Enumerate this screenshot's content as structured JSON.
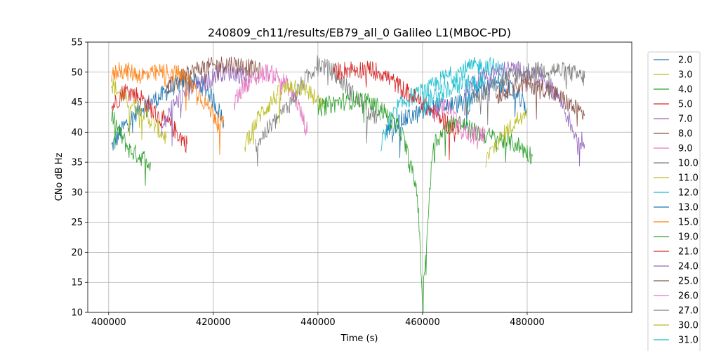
{
  "chart_data": {
    "type": "line",
    "title": "240809_ch11/results/EB79_all_0 Galileo L1(MBOC-PD)",
    "xlabel": "Time (s)",
    "ylabel": "CNo dB Hz",
    "xlim": [
      396000,
      500000
    ],
    "ylim": [
      10,
      55
    ],
    "x_ticks": [
      400000,
      420000,
      440000,
      460000,
      480000
    ],
    "x_tick_labels": [
      "400000",
      "420000",
      "440000",
      "460000",
      "480000"
    ],
    "y_ticks": [
      10,
      15,
      20,
      25,
      30,
      35,
      40,
      45,
      50,
      55
    ],
    "y_tick_labels": [
      "10",
      "15",
      "20",
      "25",
      "30",
      "35",
      "40",
      "45",
      "50",
      "55"
    ],
    "grid": true,
    "legend_position": "outside-right",
    "series": [
      {
        "name": "2.0",
        "color": "#1f77b4",
        "x": [
          400500,
          403000,
          406000,
          410000,
          413000,
          416000,
          419000,
          422000
        ],
        "y": [
          37.5,
          41,
          44,
          46,
          48,
          48.5,
          47,
          42
        ]
      },
      {
        "name": "3.0",
        "color": "#bcbd22",
        "x": [
          400500,
          402000,
          404000,
          406000,
          408000,
          410000,
          411000
        ],
        "y": [
          48,
          46.5,
          45,
          44,
          42,
          40,
          39
        ]
      },
      {
        "name": "4.0",
        "color": "#2ca02c",
        "x": [
          400500,
          402000,
          404000,
          406000,
          408000
        ],
        "y": [
          43,
          40,
          37,
          36,
          35
        ]
      },
      {
        "name": "5.0",
        "color": "#d62728",
        "x": [
          400500,
          403000,
          406000,
          409000,
          412000,
          415000
        ],
        "y": [
          44,
          47,
          46,
          43,
          41,
          38
        ]
      },
      {
        "name": "7.0",
        "color": "#9467bd",
        "x": [
          410000,
          412000,
          415000,
          418000,
          421000,
          424000,
          427000
        ],
        "y": [
          40,
          44,
          47,
          48,
          50,
          50,
          49
        ]
      },
      {
        "name": "8.0",
        "color": "#8c564b",
        "x": [
          411000,
          414000,
          417000,
          420000,
          423000,
          426000,
          429000
        ],
        "y": [
          47,
          49,
          50.5,
          51,
          51.5,
          51,
          50
        ]
      },
      {
        "name": "9.0",
        "color": "#e377c2",
        "x": [
          424000,
          426000,
          428000,
          430000,
          432000,
          434000,
          436000,
          438000
        ],
        "y": [
          45,
          48,
          49,
          50,
          49.5,
          48,
          45,
          40
        ]
      },
      {
        "name": "10.0",
        "color": "#7f7f7f",
        "x": [
          428000,
          431000,
          434000,
          437000,
          440000,
          443000,
          446000,
          449000,
          452000
        ],
        "y": [
          38,
          41,
          44,
          48,
          51.5,
          50,
          47,
          44,
          42
        ]
      },
      {
        "name": "11.0",
        "color": "#bcbd22",
        "x": [
          426000,
          429000,
          432000,
          435000,
          438000,
          441000
        ],
        "y": [
          38,
          43,
          46,
          48,
          47,
          44
        ]
      },
      {
        "name": "12.0",
        "color": "#17becf",
        "x": [
          452000,
          455000,
          458000,
          461000,
          464000,
          467000,
          470000,
          473000,
          476000
        ],
        "y": [
          38,
          44,
          46,
          47,
          49,
          50,
          51,
          51,
          50
        ]
      },
      {
        "name": "13.0",
        "color": "#1f77b4",
        "x": [
          453000,
          456000,
          459000,
          462000,
          465000,
          468000,
          471000,
          474000,
          477000,
          480000
        ],
        "y": [
          40,
          42,
          43,
          44,
          44.5,
          45,
          47,
          48,
          47,
          44
        ]
      },
      {
        "name": "15.0",
        "color": "#ff7f0e",
        "x": [
          400500,
          402000,
          404000,
          406000,
          408000,
          410000,
          412000,
          414000,
          416000,
          418000,
          420000,
          422000
        ],
        "y": [
          49,
          50.5,
          50,
          49.5,
          49.5,
          50,
          50,
          49.5,
          48,
          45.5,
          43,
          41
        ]
      },
      {
        "name": "19.0",
        "color": "#2ca02c",
        "x": [
          440000,
          444000,
          448000,
          452000,
          456000,
          459000,
          460000,
          462000,
          466000,
          470000,
          474000,
          478000,
          481000
        ],
        "y": [
          44,
          45,
          45.5,
          44,
          40,
          30,
          12,
          38,
          42,
          40,
          39,
          38,
          36
        ]
      },
      {
        "name": "21.0",
        "color": "#d62728",
        "x": [
          443000,
          446000,
          449000,
          452000,
          455000,
          458000,
          461000,
          464000,
          467000
        ],
        "y": [
          50,
          50.5,
          50.5,
          50,
          48,
          46,
          44,
          42,
          40
        ]
      },
      {
        "name": "24.0",
        "color": "#9467bd",
        "x": [
          468000,
          471000,
          474000,
          477000,
          480000,
          483000,
          486000,
          489000,
          491000
        ],
        "y": [
          47,
          49,
          50,
          50.5,
          50,
          49,
          46,
          40,
          38
        ]
      },
      {
        "name": "25.0",
        "color": "#8c564b",
        "x": [
          474000,
          477000,
          480000,
          483000,
          486000,
          489000,
          491000
        ],
        "y": [
          46,
          47.5,
          48,
          47.5,
          46,
          44,
          43
        ]
      },
      {
        "name": "26.0",
        "color": "#e377c2",
        "x": [
          462000,
          464000,
          466000,
          468000,
          470000,
          472000
        ],
        "y": [
          43,
          44.5,
          43,
          40,
          39.5,
          40
        ]
      },
      {
        "name": "27.0",
        "color": "#7f7f7f",
        "x": [
          468000,
          472000,
          476000,
          480000,
          484000,
          488000,
          491000
        ],
        "y": [
          44,
          47,
          49,
          50,
          50.5,
          50,
          49
        ]
      },
      {
        "name": "30.0",
        "color": "#bcbd22",
        "x": [
          472000,
          474000,
          476000,
          478000,
          480000
        ],
        "y": [
          35,
          38,
          40,
          42,
          44
        ]
      },
      {
        "name": "31.0",
        "color": "#17becf",
        "x": [
          460000,
          462000,
          464000,
          466000,
          468000,
          470000,
          472000
        ],
        "y": [
          44,
          46,
          47,
          47.5,
          48,
          48.5,
          48
        ]
      }
    ]
  }
}
